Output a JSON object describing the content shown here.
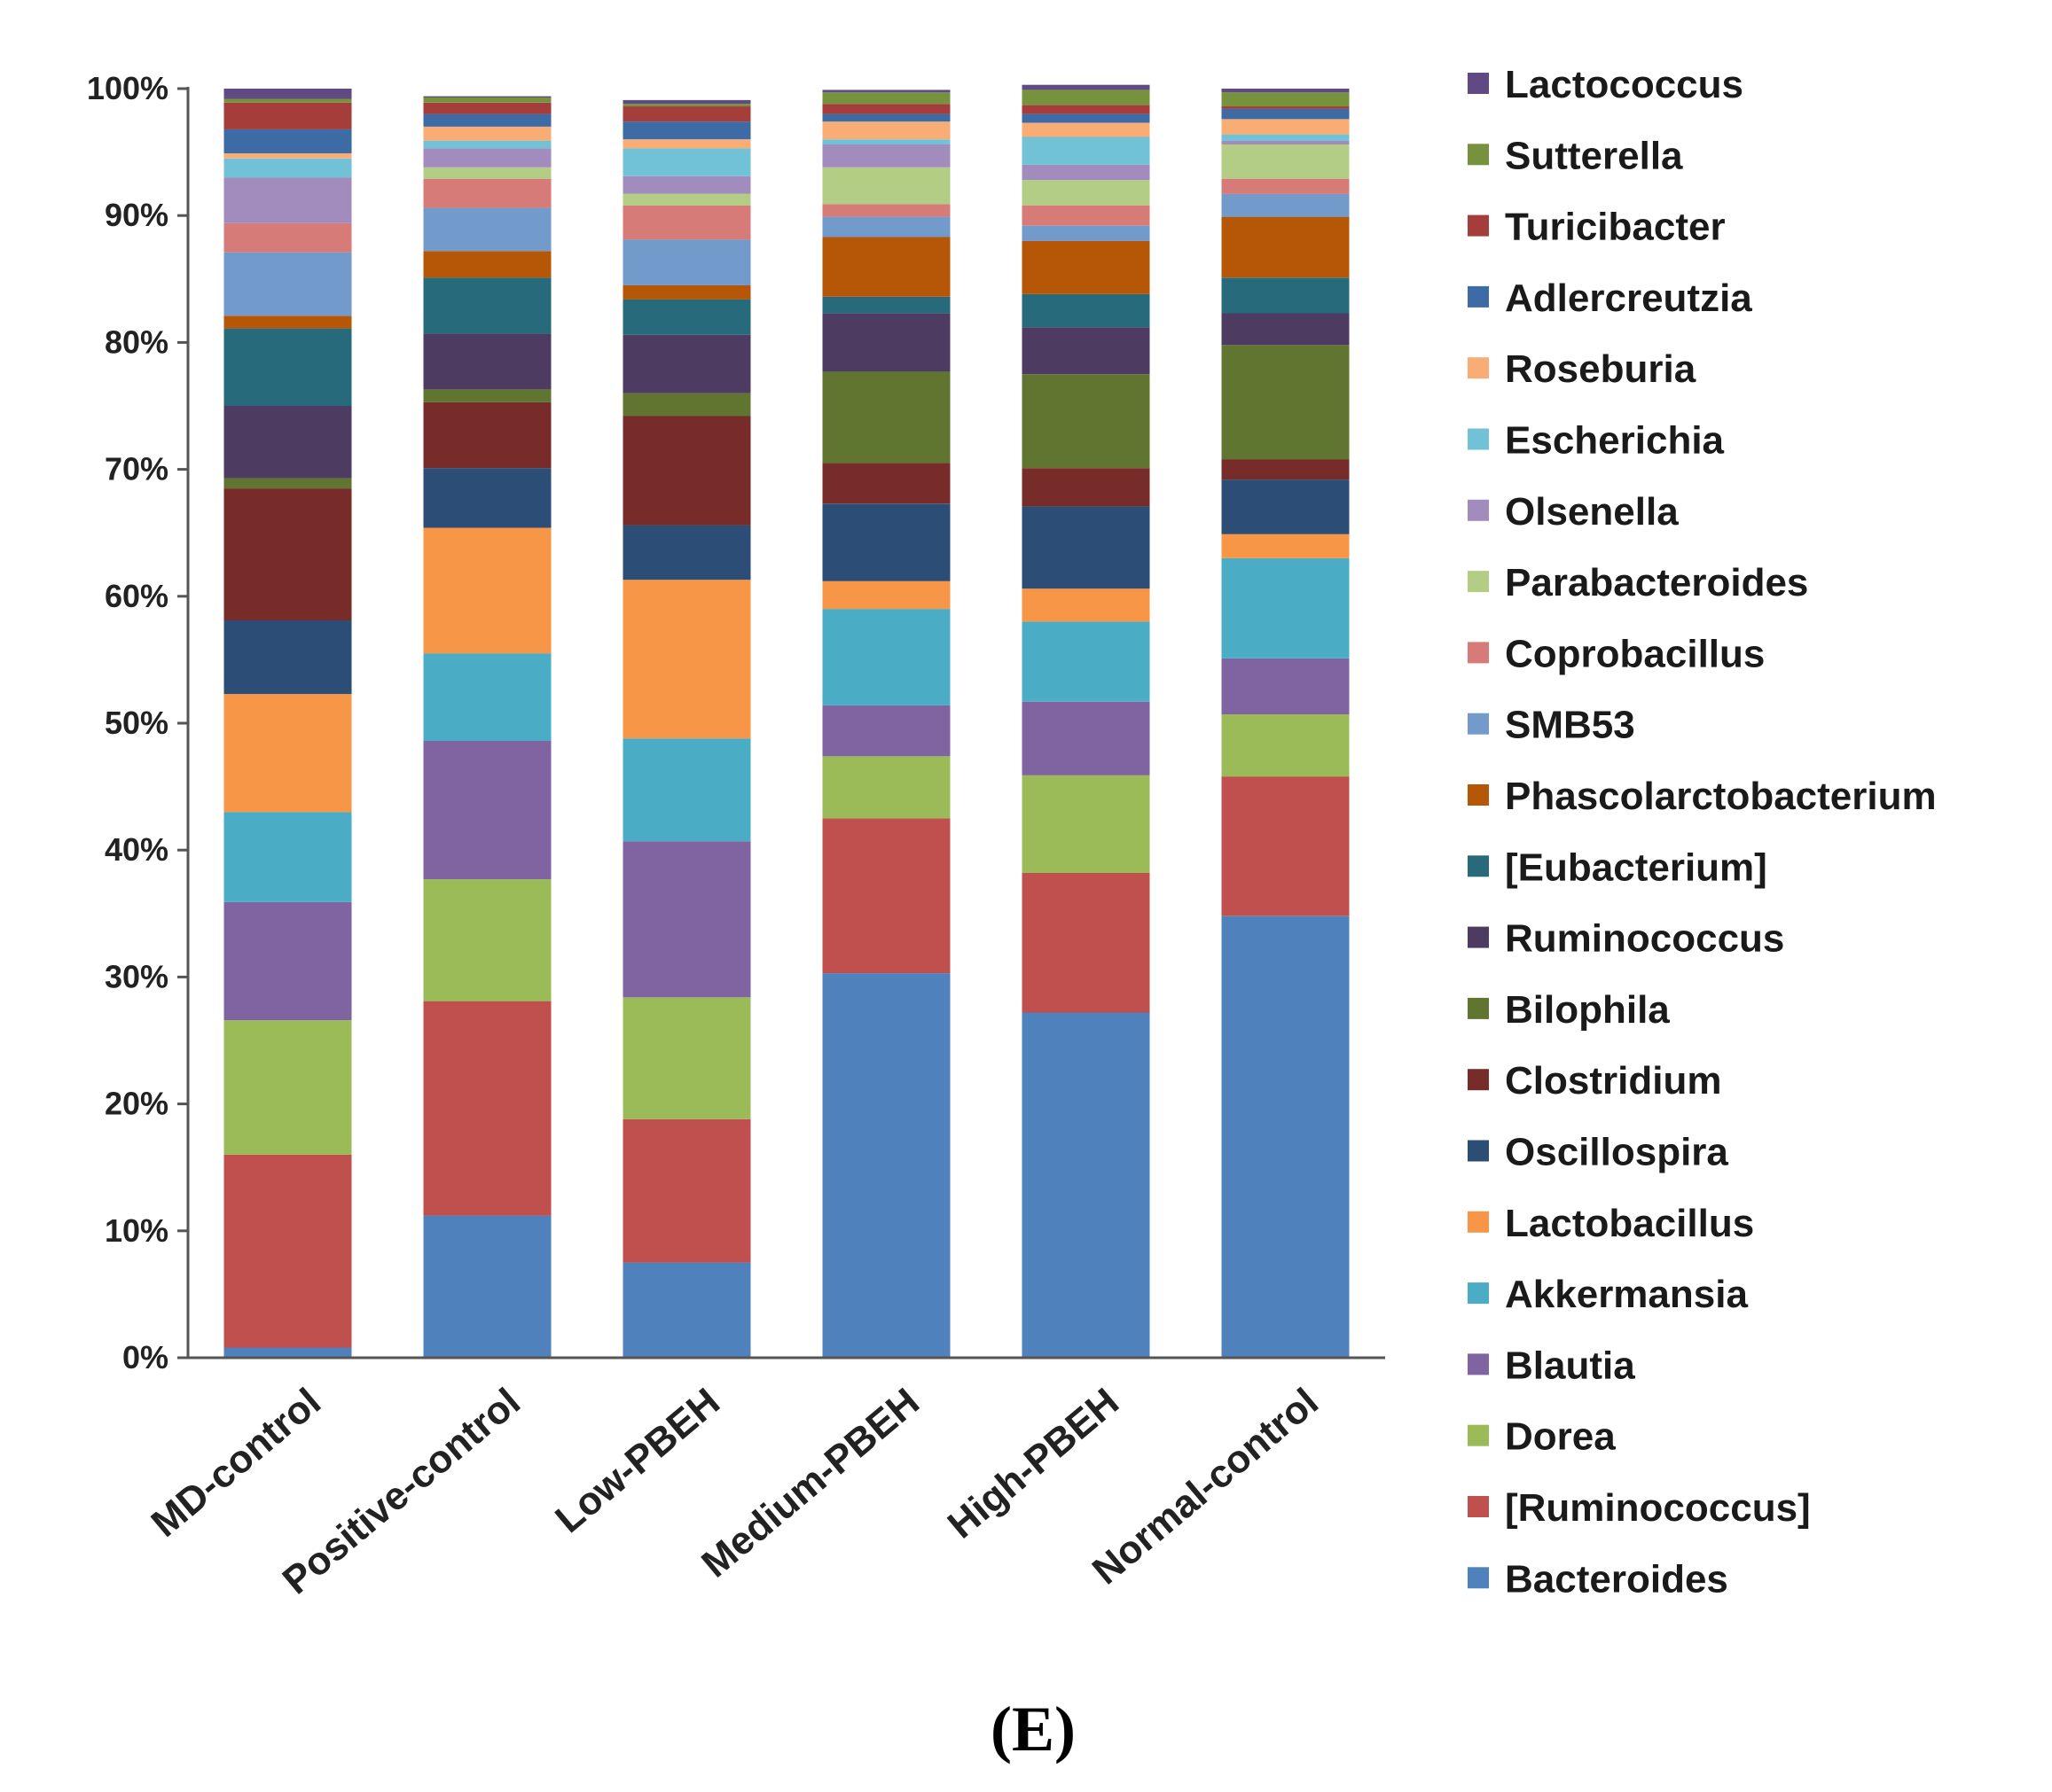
{
  "chart_data": {
    "type": "bar",
    "stacked": true,
    "percent": true,
    "title": "",
    "xlabel": "",
    "ylabel": "",
    "ylim": [
      0,
      100
    ],
    "yticks": [
      "0%",
      "10%",
      "20%",
      "30%",
      "40%",
      "50%",
      "60%",
      "70%",
      "80%",
      "90%",
      "100%"
    ],
    "categories": [
      "MD-control",
      "Positive-control",
      "Low-PBEH",
      "Medium-PBEH",
      "High-PBEH",
      "Normal-control"
    ],
    "series": [
      {
        "name": "Bacteroides",
        "color": "#4f81bd",
        "values": [
          0.8,
          11.2,
          7.5,
          30.3,
          27.2,
          34.8
        ]
      },
      {
        "name": "[Ruminococcus]",
        "color": "#c0504d",
        "values": [
          15.2,
          16.9,
          11.3,
          12.2,
          11.0,
          11.0
        ]
      },
      {
        "name": "Dorea",
        "color": "#9bbb59",
        "values": [
          10.6,
          9.6,
          9.6,
          4.9,
          7.7,
          4.9
        ]
      },
      {
        "name": "Blautia",
        "color": "#8064a2",
        "values": [
          9.3,
          10.9,
          12.3,
          4.0,
          5.8,
          4.4
        ]
      },
      {
        "name": "Akkermansia",
        "color": "#4bacc6",
        "values": [
          7.1,
          6.9,
          8.1,
          7.6,
          6.3,
          7.9
        ]
      },
      {
        "name": "Lactobacillus",
        "color": "#f79646",
        "values": [
          9.3,
          9.9,
          12.5,
          2.2,
          2.6,
          1.9
        ]
      },
      {
        "name": "Oscillospira",
        "color": "#2c4d75",
        "values": [
          5.8,
          4.7,
          4.3,
          6.1,
          6.5,
          4.3
        ]
      },
      {
        "name": "Clostridium",
        "color": "#772c2a",
        "values": [
          10.4,
          5.2,
          8.6,
          3.2,
          3.0,
          1.6
        ]
      },
      {
        "name": "Bilophila",
        "color": "#5f7530",
        "values": [
          0.8,
          1.0,
          1.8,
          7.2,
          7.4,
          9.0
        ]
      },
      {
        "name": "Ruminococcus",
        "color": "#4d3b62",
        "values": [
          5.7,
          4.4,
          4.6,
          4.6,
          3.7,
          2.5
        ]
      },
      {
        "name": "[Eubacterium]",
        "color": "#276a7c",
        "values": [
          6.1,
          4.4,
          2.8,
          1.3,
          2.6,
          2.8
        ]
      },
      {
        "name": "Phascolarctobacterium",
        "color": "#b65708",
        "values": [
          1.0,
          2.1,
          1.1,
          4.7,
          4.2,
          4.8
        ]
      },
      {
        "name": "SMB53",
        "color": "#729aca",
        "values": [
          5.0,
          3.4,
          3.6,
          1.6,
          1.2,
          1.8
        ]
      },
      {
        "name": "Coprobacillus",
        "color": "#d67b78",
        "values": [
          2.3,
          2.3,
          2.7,
          1.0,
          1.6,
          1.2
        ]
      },
      {
        "name": "Parabacteroides",
        "color": "#b3ce84",
        "values": [
          0.0,
          0.9,
          0.9,
          2.9,
          2.0,
          2.7
        ]
      },
      {
        "name": "Olsenella",
        "color": "#a28bbd",
        "values": [
          3.6,
          1.5,
          1.4,
          1.8,
          1.2,
          0.3
        ]
      },
      {
        "name": "Escherichia",
        "color": "#71c1d7",
        "values": [
          1.5,
          0.6,
          2.2,
          0.4,
          2.2,
          0.5
        ]
      },
      {
        "name": "Roseburia",
        "color": "#f9ad75",
        "values": [
          0.4,
          1.1,
          0.7,
          1.4,
          1.1,
          1.2
        ]
      },
      {
        "name": "Adlercreutzia",
        "color": "#3d6ba6",
        "values": [
          1.9,
          1.0,
          1.4,
          0.6,
          0.7,
          0.8
        ]
      },
      {
        "name": "Turicibacter",
        "color": "#a53e3a",
        "values": [
          2.1,
          0.9,
          1.2,
          0.8,
          0.7,
          0.2
        ]
      },
      {
        "name": "Sutterella",
        "color": "#76923c",
        "values": [
          0.3,
          0.4,
          0.2,
          0.9,
          1.2,
          1.1
        ]
      },
      {
        "name": "Lactococcus",
        "color": "#614a83",
        "values": [
          0.8,
          0.1,
          0.3,
          0.2,
          0.4,
          0.3
        ]
      }
    ]
  },
  "panel_label": "(E)"
}
